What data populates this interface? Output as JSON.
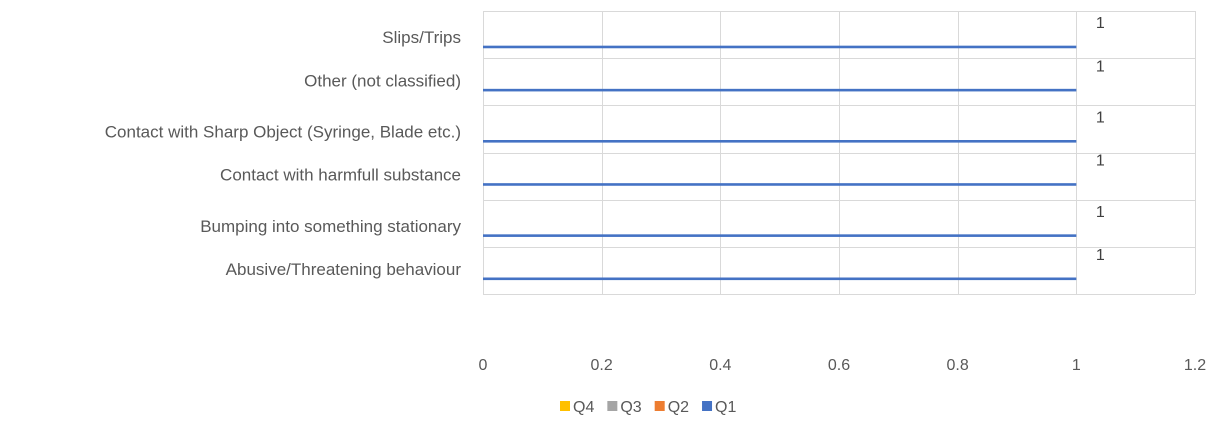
{
  "chart_data": {
    "type": "bar",
    "orientation": "horizontal",
    "categories": [
      "Abusive/Threatening behaviour",
      "Bumping into something stationary",
      "Contact with harmfull substance",
      "Contact with Sharp Object (Syringe, Blade etc.)",
      "Other (not classified)",
      "Slips/Trips"
    ],
    "series": [
      {
        "name": "Q1",
        "color": "#4472C4",
        "values": [
          1,
          1,
          1,
          1,
          1,
          1
        ]
      },
      {
        "name": "Q2",
        "color": "#ED7D31",
        "values": [
          0,
          0,
          0,
          0,
          0,
          0
        ]
      },
      {
        "name": "Q3",
        "color": "#A5A5A5",
        "values": [
          0,
          0,
          0,
          0,
          0,
          0
        ]
      },
      {
        "name": "Q4",
        "color": "#FFC000",
        "values": [
          0,
          0,
          0,
          0,
          0,
          0
        ]
      }
    ],
    "data_labels": [
      "1",
      "1",
      "1",
      "1",
      "1",
      "1"
    ],
    "xlim": [
      0,
      1.2
    ],
    "xticks": [
      0,
      0.2,
      0.4,
      0.6,
      0.8,
      1,
      1.2
    ],
    "xtick_labels": [
      "0",
      "0.2",
      "0.4",
      "0.6",
      "0.8",
      "1",
      "1.2"
    ],
    "title": "",
    "xlabel": "",
    "ylabel": "",
    "grid": true,
    "legend_position": "bottom",
    "legend_order": [
      "Q4",
      "Q3",
      "Q2",
      "Q1"
    ]
  }
}
